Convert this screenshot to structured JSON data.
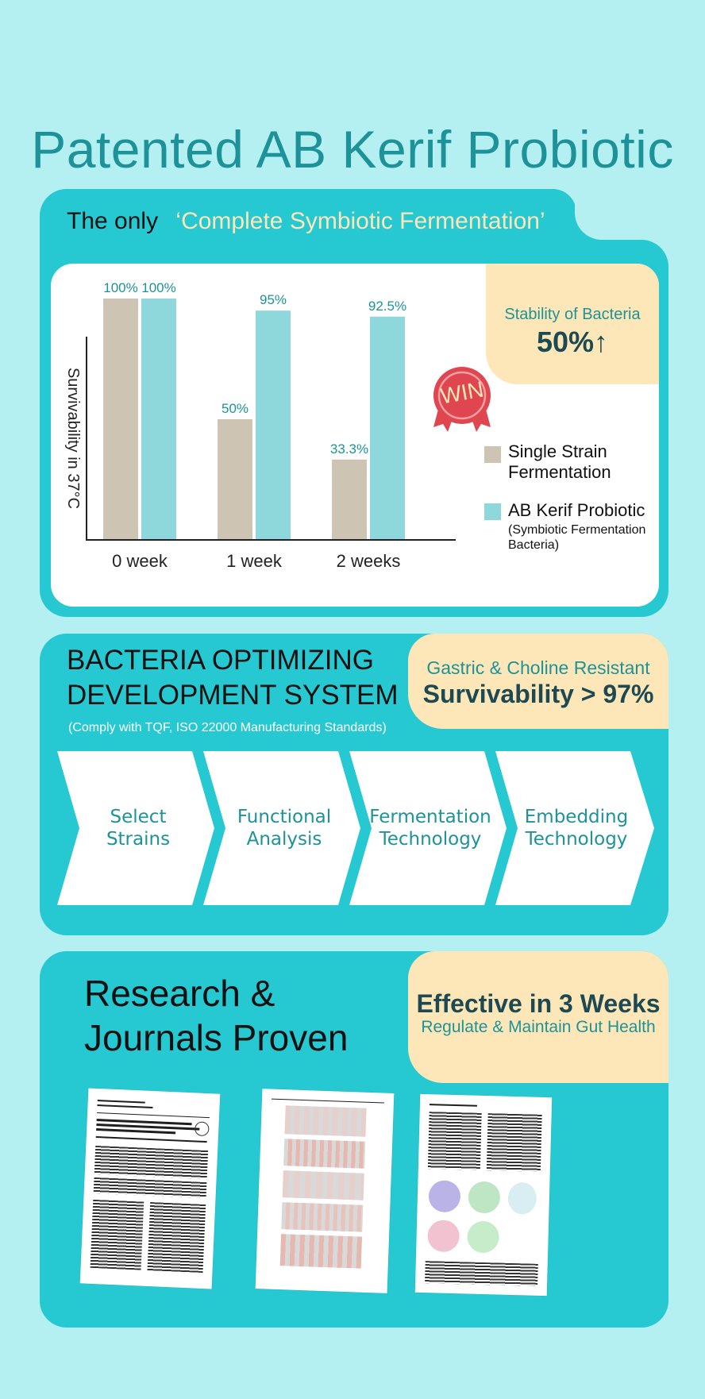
{
  "title": "Patented AB Kerif Probiotic",
  "section1": {
    "tab_prefix": "The only",
    "tab_highlight": "‘Complete Symbiotic Fermentation’",
    "badge": {
      "label": "Stability of Bacteria",
      "value": "50%↑"
    },
    "win_label": "WIN",
    "legend": {
      "single_label": "Single Strain Fermentation",
      "ab_label": "AB Kerif Probiotic",
      "ab_sub": "(Symbiotic Fermentation Bacteria)"
    }
  },
  "chart_data": {
    "type": "bar",
    "ylabel": "Survivability in 37°C",
    "xlabel": "",
    "categories": [
      "0 week",
      "1 week",
      "2 weeks"
    ],
    "series": [
      {
        "name": "Single Strain Fermentation",
        "values": [
          100,
          50,
          33.3
        ],
        "labels": [
          "100%",
          "50%",
          "33.3%"
        ],
        "color": "#cec4b3"
      },
      {
        "name": "AB Kerif Probiotic (Symbiotic Fermentation Bacteria)",
        "values": [
          100,
          95,
          92.5
        ],
        "labels": [
          "100%",
          "95%",
          "92.5%"
        ],
        "color": "#8ed8dc"
      }
    ],
    "ylim": [
      0,
      100
    ],
    "grid": false,
    "legend": "right"
  },
  "section2": {
    "heading_line1": "BACTERIA OPTIMIZING",
    "heading_line2": "DEVELOPMENT SYSTEM",
    "subnote": "(Comply with TQF, ISO 22000 Manufacturing Standards)",
    "badge": {
      "label": "Gastric & Choline Resistant",
      "value": "Survivability > 97%"
    },
    "steps": [
      "Select\nStrains",
      "Functional\nAnalysis",
      "Fermentation\nTechnology",
      "Embedding\nTechnology"
    ]
  },
  "section3": {
    "heading_line1": "Research &",
    "heading_line2": "Journals Proven",
    "badge": {
      "title": "Effective in 3 Weeks",
      "subtitle": "Regulate & Maintain Gut Health"
    }
  },
  "colors": {
    "background": "#b4eff2",
    "card": "#26c8d2",
    "accent_teal": "#1d9399",
    "highlight_yellow": "#fde7b8",
    "win_red": "#e0464f"
  }
}
